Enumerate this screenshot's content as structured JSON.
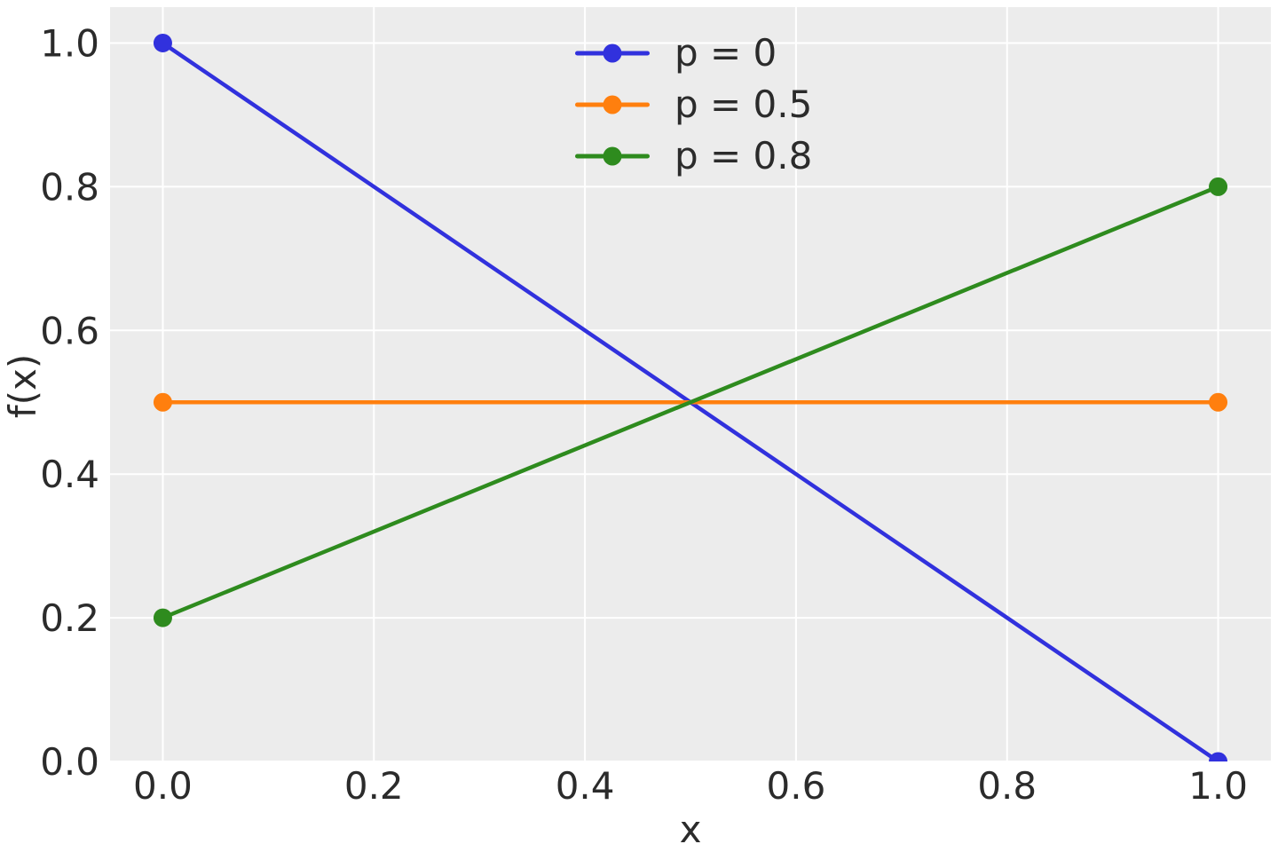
{
  "chart_data": {
    "type": "line",
    "title": "",
    "xlabel": "x",
    "ylabel": "f(x)",
    "xlim": [
      -0.05,
      1.05
    ],
    "ylim": [
      0,
      1.05
    ],
    "x_ticks": [
      "0.0",
      "0.2",
      "0.4",
      "0.6",
      "0.8",
      "1.0"
    ],
    "y_ticks": [
      "0.0",
      "0.2",
      "0.4",
      "0.6",
      "0.8",
      "1.0"
    ],
    "grid": true,
    "legend_position": "upper center",
    "plot_background": "#ececec",
    "grid_color": "#ffffff",
    "text_color": "#2b2b2b",
    "series": [
      {
        "name": "p = 0",
        "color": "#3131dd",
        "x": [
          0,
          1
        ],
        "y": [
          1.0,
          0.0
        ]
      },
      {
        "name": "p = 0.5",
        "color": "#ff7f0e",
        "x": [
          0,
          1
        ],
        "y": [
          0.5,
          0.5
        ]
      },
      {
        "name": "p = 0.8",
        "color": "#2e8b1e",
        "x": [
          0,
          1
        ],
        "y": [
          0.2,
          0.8
        ]
      }
    ]
  }
}
